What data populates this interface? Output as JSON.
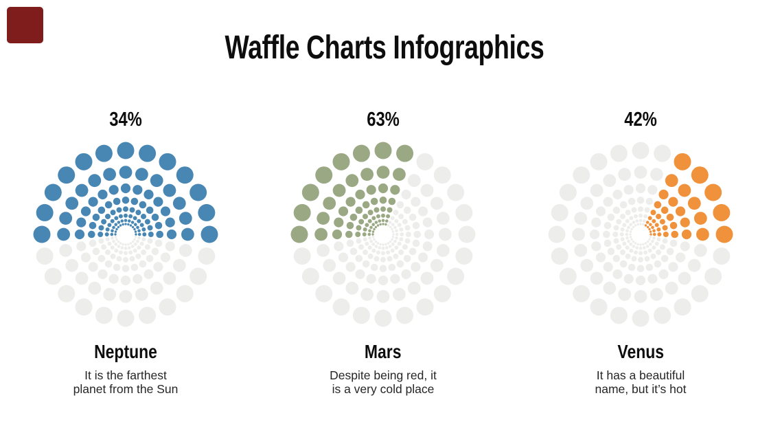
{
  "page": {
    "title": "Waffle Charts Infographics"
  },
  "decorations": {
    "corner_square_color": "#7F1D1D"
  },
  "chart_data": {
    "type": "waffle",
    "title": "Waffle Charts Infographics",
    "layout": "three radial dot waffles, percentage above, planet name and caption below",
    "dots_per_ring": 24,
    "angle_step_deg": 15,
    "ring_count": 8,
    "ring_radii": [
      15,
      20.2,
      27.3,
      36.8,
      49.7,
      67,
      90.4,
      122
    ],
    "dot_radii": [
      1.7,
      2.3,
      3.0,
      4.0,
      5.3,
      7.1,
      9.4,
      12.5
    ],
    "unfilled_color": "#EDEDEB",
    "series": [
      {
        "name": "Neptune",
        "value_pct": 34,
        "percent_label": "34%",
        "color": "#4887B4",
        "fill_start_deg": 0,
        "fill_end_deg": 180,
        "description_line1": "It is the farthest",
        "description_line2": "planet from the Sun"
      },
      {
        "name": "Mars",
        "value_pct": 63,
        "percent_label": "63%",
        "color": "#9AA884",
        "fill_start_deg": 75,
        "fill_end_deg": 180,
        "description_line1": "Despite being red, it",
        "description_line2": "is a very cold place"
      },
      {
        "name": "Venus",
        "value_pct": 42,
        "percent_label": "42%",
        "color": "#F0923C",
        "fill_start_deg": 0,
        "fill_end_deg": 60,
        "description_line1": "It has a beautiful",
        "description_line2": "name, but it’s hot"
      }
    ]
  }
}
